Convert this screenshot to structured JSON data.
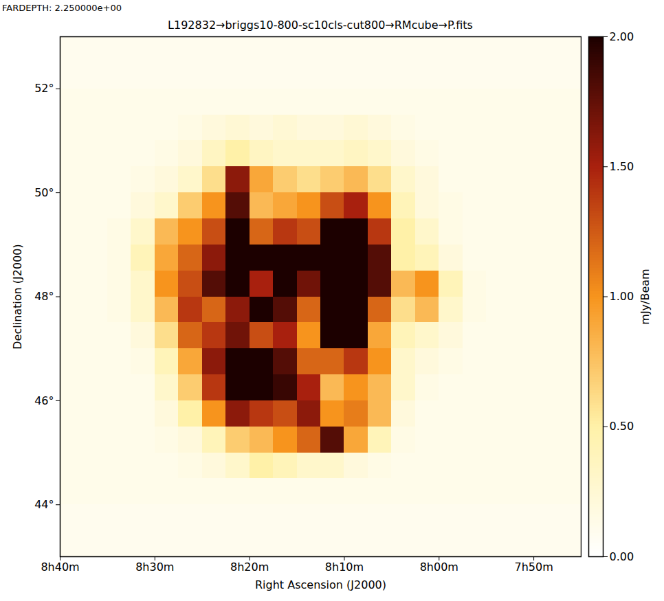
{
  "chart_data": {
    "type": "heatmap",
    "title": "L192832→briggs10-800-sc10cls-cut800→RMcube→P.fits",
    "subtitle": "FARDEPTH:  2.250000e+00",
    "x_label": "Right Ascension (J2000)",
    "y_label": "Declination (J2000)",
    "xlim": [
      520,
      465
    ],
    "xticks": [
      {
        "value": 520,
        "label": "8h40m"
      },
      {
        "value": 510,
        "label": "8h30m"
      },
      {
        "value": 500,
        "label": "8h20m"
      },
      {
        "value": 490,
        "label": "8h10m"
      },
      {
        "value": 480,
        "label": "8h00m"
      },
      {
        "value": 470,
        "label": "7h50m"
      }
    ],
    "ylim": [
      43,
      53
    ],
    "yticks": [
      {
        "value": 44,
        "label": "44°"
      },
      {
        "value": 46,
        "label": "46°"
      },
      {
        "value": 48,
        "label": "48°"
      },
      {
        "value": 50,
        "label": "50°"
      },
      {
        "value": 52,
        "label": "52°"
      }
    ],
    "heatmap": {
      "x_edges": [
        520,
        517.5,
        515,
        512.5,
        510,
        507.5,
        505,
        502.5,
        500,
        497.5,
        495,
        492.5,
        490,
        487.5,
        485,
        482.5,
        480,
        477.5,
        475,
        472.5,
        470,
        467.5,
        465
      ],
      "y_edges": [
        53,
        52.5,
        52,
        51.5,
        51,
        50.5,
        50,
        49.5,
        49,
        48.5,
        48,
        47.5,
        47,
        46.5,
        46,
        45.5,
        45,
        44.5,
        44,
        43.5,
        43
      ],
      "values": [
        [
          0.1,
          0.1,
          0.1,
          0.1,
          0.1,
          0.1,
          0.1,
          0.1,
          0.1,
          0.1,
          0.1,
          0.1,
          0.1,
          0.1,
          0.1,
          0.1,
          0.1,
          0.1,
          0.1,
          0.1,
          0.1,
          0.1
        ],
        [
          0.1,
          0.1,
          0.1,
          0.1,
          0.1,
          0.1,
          0.1,
          0.1,
          0.1,
          0.1,
          0.1,
          0.1,
          0.1,
          0.1,
          0.1,
          0.1,
          0.1,
          0.1,
          0.1,
          0.1,
          0.1,
          0.1
        ],
        [
          0.12,
          0.12,
          0.12,
          0.12,
          0.12,
          0.12,
          0.12,
          0.12,
          0.12,
          0.12,
          0.12,
          0.12,
          0.12,
          0.12,
          0.12,
          0.12,
          0.12,
          0.12,
          0.12,
          0.12,
          0.12,
          0.12
        ],
        [
          0.12,
          0.12,
          0.12,
          0.12,
          0.12,
          0.15,
          0.2,
          0.25,
          0.2,
          0.25,
          0.2,
          0.2,
          0.25,
          0.2,
          0.15,
          0.12,
          0.12,
          0.12,
          0.12,
          0.12,
          0.12,
          0.12
        ],
        [
          0.12,
          0.12,
          0.12,
          0.12,
          0.15,
          0.2,
          0.35,
          0.5,
          0.35,
          0.3,
          0.3,
          0.3,
          0.35,
          0.3,
          0.2,
          0.15,
          0.12,
          0.12,
          0.12,
          0.12,
          0.12,
          0.12
        ],
        [
          0.12,
          0.12,
          0.12,
          0.15,
          0.2,
          0.3,
          0.6,
          1.6,
          0.9,
          0.7,
          0.6,
          0.7,
          0.8,
          0.6,
          0.3,
          0.2,
          0.12,
          0.12,
          0.12,
          0.12,
          0.12,
          0.12
        ],
        [
          0.12,
          0.12,
          0.12,
          0.2,
          0.3,
          0.7,
          1.0,
          1.8,
          0.8,
          0.9,
          1.0,
          1.3,
          1.5,
          1.0,
          0.4,
          0.2,
          0.15,
          0.12,
          0.12,
          0.12,
          0.12,
          0.12
        ],
        [
          0.12,
          0.12,
          0.15,
          0.3,
          0.8,
          1.0,
          1.3,
          2.3,
          1.2,
          1.4,
          1.3,
          2.2,
          2.3,
          1.4,
          0.5,
          0.3,
          0.15,
          0.12,
          0.12,
          0.12,
          0.12,
          0.12
        ],
        [
          0.12,
          0.12,
          0.15,
          0.4,
          0.9,
          1.2,
          1.6,
          2.3,
          2.0,
          2.4,
          2.2,
          2.4,
          2.5,
          1.8,
          0.5,
          0.4,
          0.2,
          0.12,
          0.12,
          0.12,
          0.12,
          0.12
        ],
        [
          0.12,
          0.12,
          0.15,
          0.3,
          1.0,
          1.3,
          1.8,
          2.2,
          1.5,
          2.0,
          1.7,
          2.4,
          2.5,
          1.8,
          0.8,
          1.0,
          0.4,
          0.15,
          0.12,
          0.12,
          0.12,
          0.12
        ],
        [
          0.12,
          0.12,
          0.15,
          0.3,
          0.8,
          1.4,
          1.2,
          1.6,
          2.0,
          1.8,
          1.2,
          2.3,
          2.4,
          1.2,
          0.6,
          0.8,
          0.3,
          0.15,
          0.12,
          0.12,
          0.12,
          0.12
        ],
        [
          0.12,
          0.12,
          0.12,
          0.2,
          0.6,
          1.2,
          1.4,
          1.7,
          1.3,
          1.5,
          1.0,
          2.2,
          2.0,
          0.9,
          0.4,
          0.3,
          0.2,
          0.12,
          0.12,
          0.12,
          0.12,
          0.12
        ],
        [
          0.12,
          0.12,
          0.12,
          0.15,
          0.4,
          0.9,
          1.6,
          2.3,
          2.0,
          1.8,
          1.2,
          1.2,
          1.4,
          1.0,
          0.3,
          0.2,
          0.15,
          0.12,
          0.12,
          0.12,
          0.12,
          0.12
        ],
        [
          0.12,
          0.12,
          0.12,
          0.12,
          0.3,
          0.7,
          1.4,
          2.2,
          2.1,
          1.9,
          1.5,
          0.8,
          1.0,
          0.8,
          0.3,
          0.15,
          0.12,
          0.12,
          0.12,
          0.12,
          0.12,
          0.12
        ],
        [
          0.12,
          0.12,
          0.12,
          0.12,
          0.2,
          0.5,
          1.0,
          1.6,
          1.4,
          1.3,
          1.6,
          1.0,
          1.1,
          0.8,
          0.2,
          0.12,
          0.12,
          0.12,
          0.12,
          0.12,
          0.12,
          0.12
        ],
        [
          0.12,
          0.12,
          0.12,
          0.12,
          0.15,
          0.2,
          0.4,
          0.7,
          0.8,
          1.0,
          1.2,
          1.8,
          0.9,
          0.4,
          0.15,
          0.12,
          0.12,
          0.12,
          0.12,
          0.12,
          0.12,
          0.12
        ],
        [
          0.12,
          0.12,
          0.12,
          0.12,
          0.12,
          0.15,
          0.2,
          0.3,
          0.5,
          0.4,
          0.3,
          0.3,
          0.2,
          0.15,
          0.12,
          0.12,
          0.12,
          0.12,
          0.12,
          0.12,
          0.12,
          0.12
        ],
        [
          0.12,
          0.12,
          0.12,
          0.12,
          0.12,
          0.12,
          0.12,
          0.12,
          0.12,
          0.12,
          0.12,
          0.12,
          0.12,
          0.12,
          0.12,
          0.12,
          0.12,
          0.12,
          0.12,
          0.12,
          0.12,
          0.12
        ],
        [
          0.1,
          0.1,
          0.1,
          0.1,
          0.1,
          0.1,
          0.1,
          0.1,
          0.1,
          0.1,
          0.1,
          0.1,
          0.1,
          0.1,
          0.1,
          0.1,
          0.1,
          0.1,
          0.1,
          0.1,
          0.1,
          0.1
        ],
        [
          0.1,
          0.1,
          0.1,
          0.1,
          0.1,
          0.1,
          0.1,
          0.1,
          0.1,
          0.1,
          0.1,
          0.1,
          0.1,
          0.1,
          0.1,
          0.1,
          0.1,
          0.1,
          0.1,
          0.1,
          0.1,
          0.1
        ]
      ]
    },
    "colorbar": {
      "label": "mJy/Beam",
      "range": [
        0,
        2
      ],
      "ticks": [
        {
          "value": 0,
          "label": "0.00"
        },
        {
          "value": 0.5,
          "label": "0.50"
        },
        {
          "value": 1,
          "label": "1.00"
        },
        {
          "value": 1.5,
          "label": "1.50"
        },
        {
          "value": 2,
          "label": "2.00"
        }
      ]
    }
  }
}
